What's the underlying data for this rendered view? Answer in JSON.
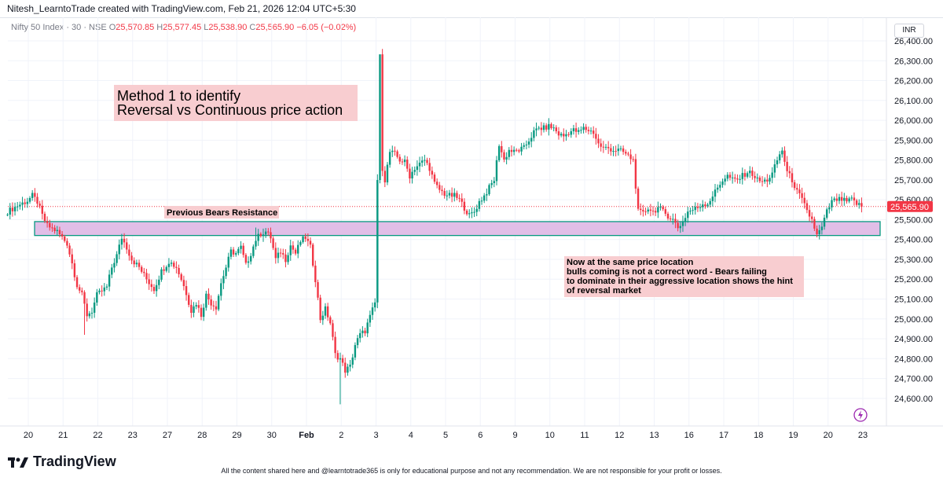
{
  "header": {
    "text": "Nitesh_LearntoTrade created with TradingView.com, Feb 21, 2026 12:04 UTC+5:30"
  },
  "symbol": {
    "name": "Nifty 50 Index · 30 · NSE",
    "o_label": "O",
    "o": "25,570.85",
    "h_label": "H",
    "h": "25,577.45",
    "l_label": "L",
    "l": "25,538.90",
    "c_label": "C",
    "c": "25,565.90",
    "change": "−6.05 (−0.02%)"
  },
  "currency": "INR",
  "chart_data": {
    "type": "candlestick",
    "ylim": [
      24540,
      26400
    ],
    "y_ticks": [
      "26,400.00",
      "26,300.00",
      "26,200.00",
      "26,100.00",
      "26,000.00",
      "25,900.00",
      "25,800.00",
      "25,700.00",
      "25,600.00",
      "25,500.00",
      "25,400.00",
      "25,300.00",
      "25,200.00",
      "25,100.00",
      "25,000.00",
      "24,900.00",
      "24,800.00",
      "24,700.00",
      "24,600.00"
    ],
    "x_ticks": [
      "20",
      "21",
      "22",
      "23",
      "27",
      "28",
      "29",
      "30",
      "Feb",
      "2",
      "3",
      "4",
      "5",
      "6",
      "9",
      "10",
      "11",
      "12",
      "13",
      "16",
      "17",
      "18",
      "19",
      "20",
      "23"
    ],
    "last_price": "25,565.90",
    "last_price_value": 25565.9,
    "zone": {
      "low": 25420,
      "high": 25490
    },
    "path_keypoints": [
      [
        0,
        25540
      ],
      [
        4,
        25570
      ],
      [
        8,
        25595
      ],
      [
        10,
        25620
      ],
      [
        12,
        25590
      ],
      [
        14,
        25520
      ],
      [
        16,
        25470
      ],
      [
        20,
        25440
      ],
      [
        24,
        25380
      ],
      [
        26,
        25280
      ],
      [
        28,
        25170
      ],
      [
        30,
        25120
      ],
      [
        32,
        25020
      ],
      [
        34,
        25040
      ],
      [
        36,
        25120
      ],
      [
        38,
        25140
      ],
      [
        40,
        25160
      ],
      [
        42,
        25260
      ],
      [
        44,
        25320
      ],
      [
        46,
        25410
      ],
      [
        48,
        25360
      ],
      [
        50,
        25300
      ],
      [
        53,
        25260
      ],
      [
        56,
        25200
      ],
      [
        59,
        25150
      ],
      [
        62,
        25240
      ],
      [
        65,
        25290
      ],
      [
        68,
        25260
      ],
      [
        70,
        25200
      ],
      [
        72,
        25130
      ],
      [
        74,
        25040
      ],
      [
        76,
        25080
      ],
      [
        78,
        25020
      ],
      [
        80,
        25120
      ],
      [
        82,
        25080
      ],
      [
        84,
        25060
      ],
      [
        86,
        25180
      ],
      [
        88,
        25260
      ],
      [
        90,
        25340
      ],
      [
        92,
        25330
      ],
      [
        94,
        25360
      ],
      [
        96,
        25270
      ],
      [
        98,
        25330
      ],
      [
        100,
        25400
      ],
      [
        102,
        25430
      ],
      [
        104,
        25440
      ],
      [
        106,
        25410
      ],
      [
        108,
        25300
      ],
      [
        110,
        25340
      ],
      [
        112,
        25300
      ],
      [
        114,
        25370
      ],
      [
        116,
        25330
      ],
      [
        118,
        25390
      ],
      [
        120,
        25410
      ],
      [
        122,
        25360
      ],
      [
        124,
        25200
      ],
      [
        126,
        25000
      ],
      [
        128,
        25050
      ],
      [
        130,
        24980
      ],
      [
        132,
        24820
      ],
      [
        134,
        24800
      ],
      [
        136,
        24740
      ],
      [
        138,
        24760
      ],
      [
        140,
        24870
      ],
      [
        142,
        24920
      ],
      [
        144,
        24940
      ],
      [
        146,
        25010
      ],
      [
        148,
        25080
      ],
      [
        150,
        26320
      ],
      [
        151,
        25760
      ],
      [
        152,
        25700
      ],
      [
        154,
        25840
      ],
      [
        156,
        25830
      ],
      [
        158,
        25800
      ],
      [
        160,
        25790
      ],
      [
        162,
        25720
      ],
      [
        164,
        25760
      ],
      [
        166,
        25780
      ],
      [
        168,
        25800
      ],
      [
        170,
        25760
      ],
      [
        172,
        25680
      ],
      [
        174,
        25650
      ],
      [
        176,
        25630
      ],
      [
        178,
        25620
      ],
      [
        180,
        25620
      ],
      [
        182,
        25600
      ],
      [
        184,
        25560
      ],
      [
        186,
        25520
      ],
      [
        188,
        25540
      ],
      [
        190,
        25590
      ],
      [
        192,
        25620
      ],
      [
        194,
        25660
      ],
      [
        196,
        25700
      ],
      [
        198,
        25880
      ],
      [
        200,
        25800
      ],
      [
        202,
        25850
      ],
      [
        204,
        25840
      ],
      [
        206,
        25850
      ],
      [
        208,
        25860
      ],
      [
        210,
        25900
      ],
      [
        212,
        25940
      ],
      [
        214,
        25960
      ],
      [
        216,
        25960
      ],
      [
        218,
        25970
      ],
      [
        220,
        25960
      ],
      [
        222,
        25930
      ],
      [
        224,
        25920
      ],
      [
        226,
        25940
      ],
      [
        228,
        25950
      ],
      [
        230,
        25940
      ],
      [
        232,
        25960
      ],
      [
        234,
        25950
      ],
      [
        236,
        25940
      ],
      [
        238,
        25880
      ],
      [
        240,
        25860
      ],
      [
        242,
        25860
      ],
      [
        244,
        25850
      ],
      [
        246,
        25850
      ],
      [
        248,
        25840
      ],
      [
        250,
        25820
      ],
      [
        252,
        25800
      ],
      [
        254,
        25540
      ],
      [
        256,
        25530
      ],
      [
        258,
        25560
      ],
      [
        260,
        25540
      ],
      [
        262,
        25560
      ],
      [
        264,
        25540
      ],
      [
        266,
        25520
      ],
      [
        268,
        25500
      ],
      [
        270,
        25460
      ],
      [
        272,
        25490
      ],
      [
        274,
        25540
      ],
      [
        276,
        25550
      ],
      [
        278,
        25560
      ],
      [
        280,
        25580
      ],
      [
        282,
        25580
      ],
      [
        284,
        25620
      ],
      [
        286,
        25660
      ],
      [
        288,
        25700
      ],
      [
        290,
        25720
      ],
      [
        292,
        25700
      ],
      [
        294,
        25700
      ],
      [
        296,
        25720
      ],
      [
        298,
        25740
      ],
      [
        300,
        25730
      ],
      [
        302,
        25700
      ],
      [
        304,
        25690
      ],
      [
        306,
        25700
      ],
      [
        308,
        25730
      ],
      [
        310,
        25800
      ],
      [
        312,
        25850
      ],
      [
        314,
        25740
      ],
      [
        316,
        25700
      ],
      [
        318,
        25640
      ],
      [
        320,
        25600
      ],
      [
        322,
        25540
      ],
      [
        324,
        25500
      ],
      [
        326,
        25420
      ],
      [
        328,
        25460
      ],
      [
        330,
        25540
      ],
      [
        332,
        25590
      ],
      [
        334,
        25600
      ],
      [
        336,
        25600
      ],
      [
        338,
        25590
      ],
      [
        340,
        25600
      ],
      [
        342,
        25580
      ],
      [
        344,
        25566
      ]
    ]
  },
  "annotations": {
    "method_title_line1": "Method 1 to identify",
    "method_title_line2": "Reversal vs Continuous price action",
    "resistance_label": "Previous Bears Resistance",
    "note_line1": "Now at the same price location",
    "note_line2": "bulls coming is not a correct word - Bears failing",
    "note_line3": "to dominate in their aggressive location shows the hint",
    "note_line4": "of reversal market"
  },
  "footer": {
    "logo": "TradingView",
    "disclaimer": "All the content shared here and @learntotrade365 is only for educational purpose and not any recommendation. We are not responsible for your profit or losses."
  },
  "colors": {
    "up": "#089981",
    "down": "#f23645",
    "zone_fill": "#e1bee7",
    "zone_border": "#089981",
    "note_bg": "#f8cdd0",
    "last_price_bg": "#f23645"
  }
}
